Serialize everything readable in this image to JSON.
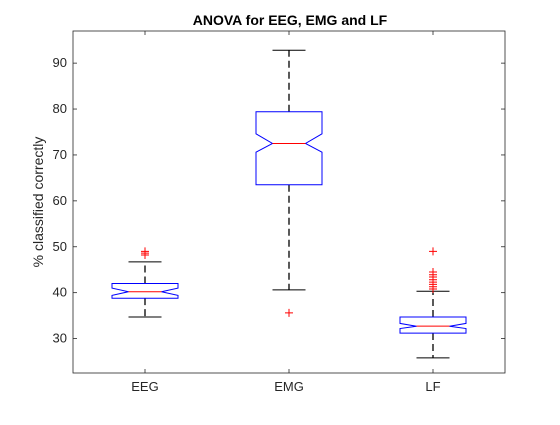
{
  "chart_data": {
    "type": "boxplot",
    "title": "ANOVA for EEG, EMG and LF",
    "xlabel": "",
    "ylabel": "% classified correctly",
    "categories": [
      "EEG",
      "EMG",
      "LF"
    ],
    "ylim": [
      22.5,
      97
    ],
    "yticks": [
      30,
      40,
      50,
      60,
      70,
      80,
      90
    ],
    "notched": true,
    "grid": false,
    "boxes": [
      {
        "label": "EEG",
        "whisker_low": 34.7,
        "q1": 38.8,
        "notch_low": 39.4,
        "median": 40.2,
        "notch_high": 41.0,
        "q3": 42.0,
        "whisker_high": 46.7,
        "outliers": [
          48.2,
          48.6,
          49.0
        ]
      },
      {
        "label": "EMG",
        "whisker_low": 40.6,
        "q1": 63.5,
        "notch_low": 70.6,
        "median": 72.5,
        "notch_high": 74.6,
        "q3": 79.4,
        "whisker_high": 92.8,
        "outliers": [
          35.6
        ]
      },
      {
        "label": "LF",
        "whisker_low": 25.8,
        "q1": 31.2,
        "notch_low": 32.2,
        "median": 32.7,
        "notch_high": 33.3,
        "q3": 34.7,
        "whisker_high": 40.3,
        "outliers": [
          40.8,
          41.3,
          41.8,
          42.3,
          42.8,
          43.4,
          43.9,
          44.5,
          49.0
        ]
      }
    ],
    "colors": {
      "box": "#0000ff",
      "median": "#ff0000",
      "whisker": "#000000",
      "outlier": "#ff0000",
      "axes": "#262626"
    }
  }
}
